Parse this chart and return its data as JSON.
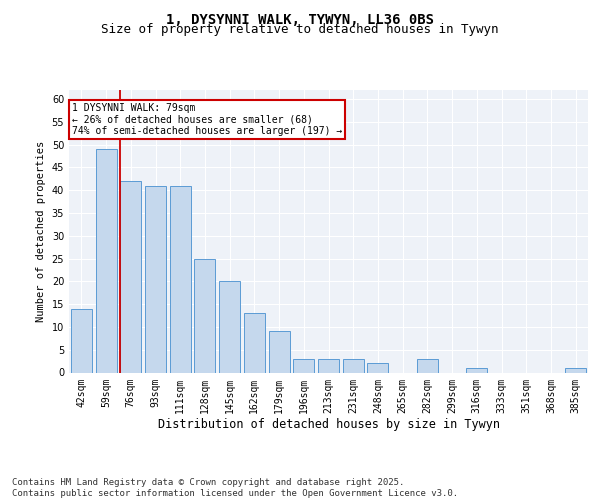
{
  "title": "1, DYSYNNI WALK, TYWYN, LL36 0BS",
  "subtitle": "Size of property relative to detached houses in Tywyn",
  "xlabel": "Distribution of detached houses by size in Tywyn",
  "ylabel": "Number of detached properties",
  "categories": [
    "42sqm",
    "59sqm",
    "76sqm",
    "93sqm",
    "111sqm",
    "128sqm",
    "145sqm",
    "162sqm",
    "179sqm",
    "196sqm",
    "213sqm",
    "231sqm",
    "248sqm",
    "265sqm",
    "282sqm",
    "299sqm",
    "316sqm",
    "333sqm",
    "351sqm",
    "368sqm",
    "385sqm"
  ],
  "values": [
    14,
    49,
    42,
    41,
    41,
    25,
    20,
    13,
    9,
    3,
    3,
    3,
    2,
    0,
    3,
    0,
    1,
    0,
    0,
    0,
    1
  ],
  "bar_color": "#c5d8ed",
  "bar_edge_color": "#5b9bd5",
  "red_line_index": 2,
  "annotation_text": "1 DYSYNNI WALK: 79sqm\n← 26% of detached houses are smaller (68)\n74% of semi-detached houses are larger (197) →",
  "annotation_box_color": "#ffffff",
  "annotation_box_edge_color": "#cc0000",
  "ylim": [
    0,
    62
  ],
  "yticks": [
    0,
    5,
    10,
    15,
    20,
    25,
    30,
    35,
    40,
    45,
    50,
    55,
    60
  ],
  "background_color": "#eef2f8",
  "grid_color": "#ffffff",
  "footer": "Contains HM Land Registry data © Crown copyright and database right 2025.\nContains public sector information licensed under the Open Government Licence v3.0.",
  "title_fontsize": 10,
  "subtitle_fontsize": 9,
  "footer_fontsize": 6.5,
  "ylabel_fontsize": 7.5,
  "xlabel_fontsize": 8.5,
  "tick_fontsize": 7,
  "annot_fontsize": 7
}
